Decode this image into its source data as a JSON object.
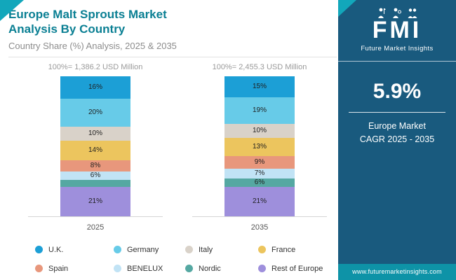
{
  "header": {
    "title": "Europe Malt Sprouts Market Analysis By Country",
    "subtitle": "Country Share (%) Analysis, 2025 & 2035"
  },
  "sidebar": {
    "logo_text": "FMI",
    "brand": "Future Market Insights",
    "cagr_value": "5.9%",
    "cagr_line1": "Europe Market",
    "cagr_line2": "CAGR 2025 - 2035",
    "website": "www.futuremarketinsights.com",
    "background_color": "#195a7e",
    "accent_color": "#0e93a7"
  },
  "chart_data": {
    "type": "bar",
    "stacked": true,
    "orientation": "vertical",
    "categories": [
      "2025",
      "2035"
    ],
    "totals": [
      "100%= 1,386.2 USD Million",
      "100%= 2,455.3 USD Million"
    ],
    "ylim": [
      0,
      100
    ],
    "grid": false,
    "legend_position": "bottom",
    "series": [
      {
        "name": "U.K.",
        "color": "#1c9fd6",
        "values": [
          16,
          15
        ]
      },
      {
        "name": "Germany",
        "color": "#67cbe8",
        "values": [
          20,
          19
        ]
      },
      {
        "name": "Italy",
        "color": "#d9d2c9",
        "values": [
          10,
          10
        ]
      },
      {
        "name": "France",
        "color": "#ecc55e",
        "values": [
          14,
          13
        ]
      },
      {
        "name": "Spain",
        "color": "#e8977c",
        "values": [
          8,
          9
        ]
      },
      {
        "name": "BENELUX",
        "color": "#c1e3f5",
        "values": [
          6,
          7
        ]
      },
      {
        "name": "Nordic",
        "color": "#55a8a2",
        "values": [
          5,
          6
        ]
      },
      {
        "name": "Rest of Europe",
        "color": "#9e8fdc",
        "values": [
          21,
          21
        ]
      }
    ],
    "labels": [
      [
        "16%",
        "20%",
        "10%",
        "14%",
        "8%",
        "6%",
        "",
        "21%"
      ],
      [
        "15%",
        "19%",
        "10%",
        "13%",
        "9%",
        "7%",
        "6%",
        "21%"
      ]
    ]
  }
}
